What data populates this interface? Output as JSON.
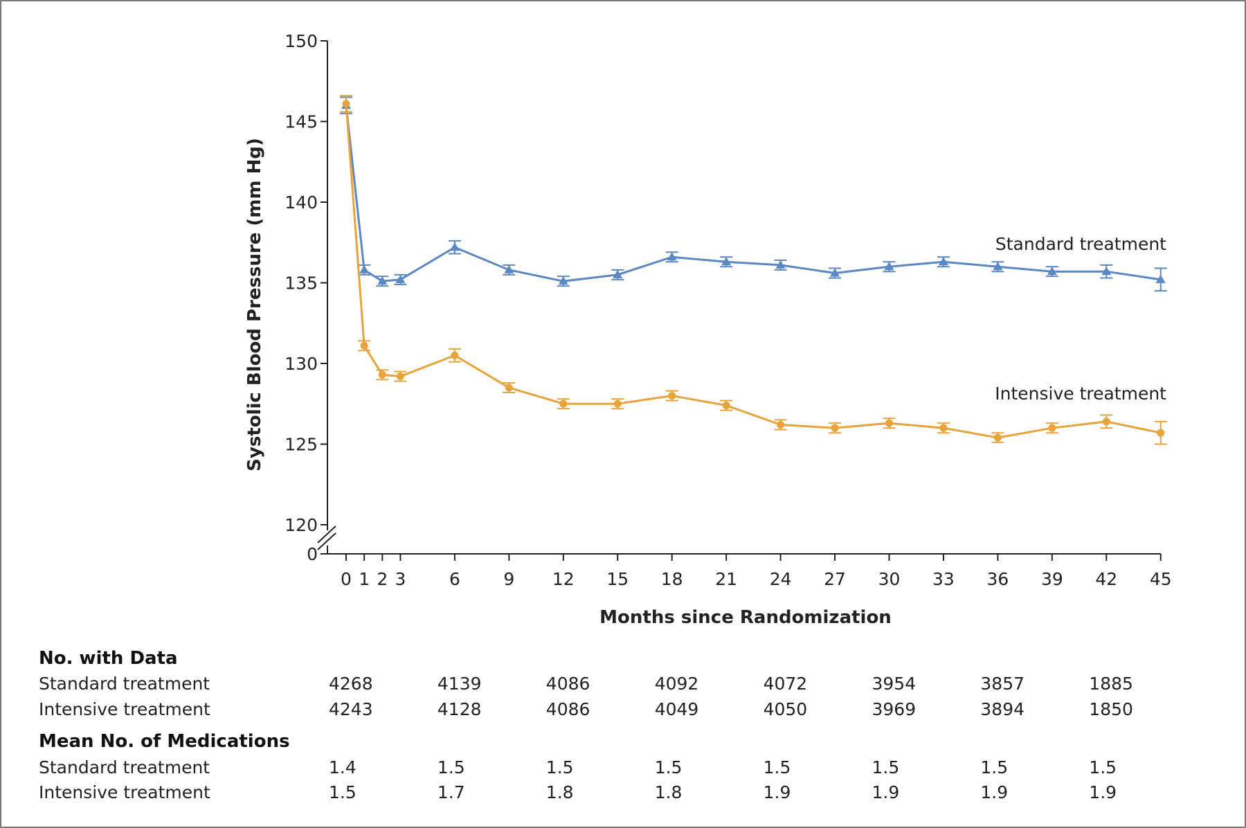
{
  "chart_data": {
    "type": "line",
    "title": "",
    "xlabel": "Months since Randomization",
    "ylabel": "Systolic Blood Pressure (mm Hg)",
    "ylim": [
      120,
      150
    ],
    "y_break": true,
    "y_ticks": [
      120,
      125,
      130,
      135,
      140,
      145,
      150
    ],
    "y_zero_label": "0",
    "x_ticks": [
      0,
      1,
      2,
      3,
      6,
      9,
      12,
      15,
      18,
      21,
      24,
      27,
      30,
      33,
      36,
      39,
      42,
      45
    ],
    "grid": false,
    "legend": "direct labels at right",
    "x": [
      0,
      1,
      2,
      3,
      6,
      9,
      12,
      15,
      18,
      21,
      24,
      27,
      30,
      33,
      36,
      39,
      42,
      45
    ],
    "series": [
      {
        "name": "Standard treatment",
        "color": "#5b87c2",
        "marker": "triangle",
        "values": [
          146.0,
          135.8,
          135.1,
          135.2,
          137.2,
          135.8,
          135.1,
          135.5,
          136.6,
          136.3,
          136.1,
          135.6,
          136.0,
          136.3,
          136.0,
          135.7,
          135.7,
          135.2
        ],
        "error": [
          0.5,
          0.3,
          0.3,
          0.3,
          0.4,
          0.3,
          0.3,
          0.3,
          0.3,
          0.3,
          0.3,
          0.3,
          0.3,
          0.3,
          0.3,
          0.3,
          0.4,
          0.7
        ]
      },
      {
        "name": "Intensive treatment",
        "color": "#e8a33b",
        "marker": "circle",
        "values": [
          146.1,
          131.1,
          129.3,
          129.2,
          130.5,
          128.5,
          127.5,
          127.5,
          128.0,
          127.4,
          126.2,
          126.0,
          126.3,
          126.0,
          125.4,
          126.0,
          126.4,
          125.7
        ],
        "error": [
          0.5,
          0.3,
          0.3,
          0.3,
          0.4,
          0.3,
          0.3,
          0.3,
          0.3,
          0.3,
          0.3,
          0.3,
          0.3,
          0.3,
          0.3,
          0.3,
          0.4,
          0.7
        ]
      }
    ]
  },
  "table": {
    "section1_title": "No. with Data",
    "section2_title": "Mean No. of Medications",
    "row_labels": [
      "Standard treatment",
      "Intensive treatment"
    ],
    "months": [
      0,
      6,
      12,
      18,
      24,
      30,
      36,
      42
    ],
    "no_with_data": {
      "standard": [
        "4268",
        "4139",
        "4086",
        "4092",
        "4072",
        "3954",
        "3857",
        "1885"
      ],
      "intensive": [
        "4243",
        "4128",
        "4086",
        "4049",
        "4050",
        "3969",
        "3894",
        "1850"
      ]
    },
    "medications": {
      "standard": [
        "1.4",
        "1.5",
        "1.5",
        "1.5",
        "1.5",
        "1.5",
        "1.5",
        "1.5"
      ],
      "intensive": [
        "1.5",
        "1.7",
        "1.8",
        "1.8",
        "1.9",
        "1.9",
        "1.9",
        "1.9"
      ]
    }
  }
}
